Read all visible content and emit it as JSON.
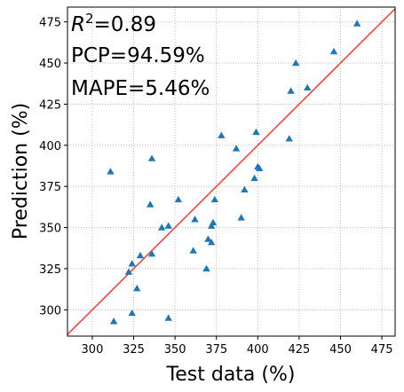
{
  "chart_data": {
    "type": "scatter",
    "xlabel": "Test data (%)",
    "ylabel": "Prediction (%)",
    "xlim": [
      285,
      483
    ],
    "ylim": [
      284,
      484
    ],
    "xticks": [
      300,
      325,
      350,
      375,
      400,
      425,
      450,
      475
    ],
    "yticks": [
      300,
      325,
      350,
      375,
      400,
      425,
      450,
      475
    ],
    "grid": true,
    "marker": "triangle",
    "marker_color": "#1f77b4",
    "reference_line": {
      "label": "y = x",
      "color": "#ff4040"
    },
    "annotations": {
      "r2_symbol": "R",
      "r2_exponent": "2",
      "r2_value": "=0.89",
      "pcp": "PCP=94.59%",
      "mape": "MAPE=5.46%"
    },
    "points": [
      {
        "x": 460,
        "y": 474
      },
      {
        "x": 446,
        "y": 457
      },
      {
        "x": 423,
        "y": 450
      },
      {
        "x": 430,
        "y": 435
      },
      {
        "x": 420,
        "y": 433
      },
      {
        "x": 399,
        "y": 408
      },
      {
        "x": 419,
        "y": 404
      },
      {
        "x": 378,
        "y": 406
      },
      {
        "x": 387,
        "y": 398
      },
      {
        "x": 400,
        "y": 387
      },
      {
        "x": 401,
        "y": 386
      },
      {
        "x": 398,
        "y": 380
      },
      {
        "x": 392,
        "y": 373
      },
      {
        "x": 336,
        "y": 392
      },
      {
        "x": 311,
        "y": 384
      },
      {
        "x": 335,
        "y": 364
      },
      {
        "x": 352,
        "y": 367
      },
      {
        "x": 374,
        "y": 367
      },
      {
        "x": 362,
        "y": 355
      },
      {
        "x": 390,
        "y": 356
      },
      {
        "x": 373,
        "y": 353
      },
      {
        "x": 372,
        "y": 351
      },
      {
        "x": 346,
        "y": 351
      },
      {
        "x": 342,
        "y": 350
      },
      {
        "x": 370,
        "y": 343
      },
      {
        "x": 372,
        "y": 341
      },
      {
        "x": 361,
        "y": 336
      },
      {
        "x": 336,
        "y": 334
      },
      {
        "x": 329,
        "y": 333
      },
      {
        "x": 324,
        "y": 328
      },
      {
        "x": 369,
        "y": 325
      },
      {
        "x": 322,
        "y": 323
      },
      {
        "x": 327,
        "y": 313
      },
      {
        "x": 324,
        "y": 298
      },
      {
        "x": 346,
        "y": 295
      },
      {
        "x": 313,
        "y": 293
      }
    ]
  }
}
